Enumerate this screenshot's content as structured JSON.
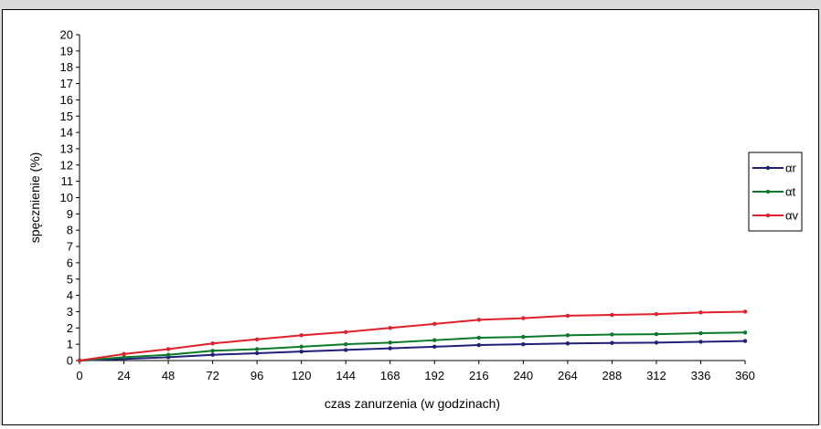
{
  "chart_data": {
    "type": "line",
    "xlabel": "czas zanurzenia (w godzinach)",
    "ylabel": "spęcznienie (%)",
    "x": [
      0,
      24,
      48,
      72,
      96,
      120,
      144,
      168,
      192,
      216,
      240,
      264,
      288,
      312,
      336,
      360
    ],
    "xlim": [
      0,
      360
    ],
    "ylim": [
      0,
      20
    ],
    "yticks": [
      0,
      1,
      2,
      3,
      4,
      5,
      6,
      7,
      8,
      9,
      10,
      11,
      12,
      13,
      14,
      15,
      16,
      17,
      18,
      19,
      20
    ],
    "legend_position": "right",
    "grid": false,
    "series": [
      {
        "name": "αr",
        "color": "#1f1f7a",
        "values": [
          0,
          0.1,
          0.2,
          0.35,
          0.45,
          0.55,
          0.65,
          0.75,
          0.85,
          0.95,
          1.0,
          1.05,
          1.08,
          1.1,
          1.15,
          1.2
        ]
      },
      {
        "name": "αt",
        "color": "#0a7a2a",
        "values": [
          0,
          0.2,
          0.35,
          0.6,
          0.7,
          0.85,
          1.0,
          1.1,
          1.25,
          1.4,
          1.45,
          1.55,
          1.6,
          1.62,
          1.68,
          1.72
        ]
      },
      {
        "name": "αv",
        "color": "#e0202a",
        "values": [
          0,
          0.4,
          0.7,
          1.05,
          1.3,
          1.55,
          1.75,
          2.0,
          2.25,
          2.5,
          2.6,
          2.75,
          2.8,
          2.85,
          2.95,
          3.0
        ]
      }
    ]
  }
}
